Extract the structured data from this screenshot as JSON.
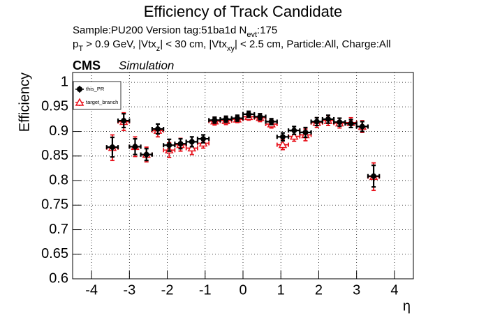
{
  "chart_data": {
    "type": "errorbar",
    "title": "Efficiency of Track Candidate",
    "annotations": [
      [
        {
          "text": "Sample:PU200   Version tag:51ba1d  N"
        },
        {
          "sub": "evt"
        },
        {
          "text": ":175"
        }
      ],
      [
        {
          "text": "p"
        },
        {
          "sub": "T"
        },
        {
          "text": " > 0.9 GeV, |Vtx"
        },
        {
          "sub": "z"
        },
        {
          "text": "| < 30 cm, |Vtx"
        },
        {
          "sub": "xy"
        },
        {
          "text": "| < 2.5 cm, Particle:All, Charge:All"
        }
      ]
    ],
    "experiment": "CMS",
    "status": "Simulation",
    "xlabel": "η",
    "ylabel": "Efficiency",
    "x": [
      -3.45,
      -3.15,
      -2.85,
      -2.55,
      -2.25,
      -1.95,
      -1.65,
      -1.35,
      -1.05,
      -0.75,
      -0.45,
      -0.15,
      0.15,
      0.45,
      0.75,
      1.05,
      1.35,
      1.65,
      1.95,
      2.25,
      2.55,
      2.85,
      3.15,
      3.45
    ],
    "xerr": 0.15,
    "series": [
      {
        "name": "this_PR",
        "color": "#000000",
        "marker": "circle",
        "values": [
          0.868,
          0.922,
          0.869,
          0.853,
          0.905,
          0.872,
          0.875,
          0.879,
          0.885,
          0.923,
          0.925,
          0.927,
          0.935,
          0.93,
          0.92,
          0.889,
          0.902,
          0.898,
          0.92,
          0.925,
          0.919,
          0.916,
          0.91,
          0.809
        ],
        "errors": [
          0.02,
          0.014,
          0.016,
          0.012,
          0.01,
          0.012,
          0.01,
          0.01,
          0.008,
          0.006,
          0.006,
          0.006,
          0.006,
          0.006,
          0.006,
          0.008,
          0.008,
          0.01,
          0.008,
          0.008,
          0.008,
          0.008,
          0.01,
          0.022
        ]
      },
      {
        "name": "target_branch",
        "color": "#e8101a",
        "marker": "triangle-open",
        "values": [
          0.867,
          0.92,
          0.869,
          0.853,
          0.902,
          0.862,
          0.873,
          0.866,
          0.876,
          0.921,
          0.922,
          0.925,
          0.93,
          0.928,
          0.915,
          0.873,
          0.89,
          0.893,
          0.918,
          0.922,
          0.917,
          0.918,
          0.91,
          0.808
        ],
        "errors": [
          0.026,
          0.018,
          0.02,
          0.015,
          0.013,
          0.015,
          0.013,
          0.013,
          0.01,
          0.008,
          0.008,
          0.007,
          0.007,
          0.008,
          0.008,
          0.01,
          0.01,
          0.012,
          0.01,
          0.01,
          0.01,
          0.01,
          0.012,
          0.028
        ]
      }
    ],
    "xlim": [
      -4.5,
      4.5
    ],
    "ylim": [
      0.6,
      1.02
    ],
    "xticks": [
      -4,
      -3,
      -2,
      -1,
      0,
      1,
      2,
      3,
      4
    ],
    "yticks": [
      0.6,
      0.65,
      0.7,
      0.75,
      0.8,
      0.85,
      0.9,
      0.95,
      1
    ],
    "grid": true,
    "legend": "upper left"
  }
}
